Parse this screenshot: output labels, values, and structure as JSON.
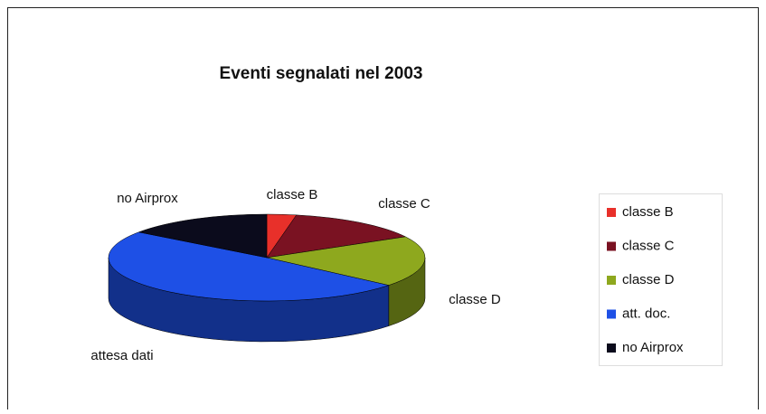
{
  "chart_data": {
    "type": "pie3d",
    "title": "Eventi segnalati nel 2003",
    "categories": [
      "classe B",
      "classe C",
      "classe D",
      "att. doc.",
      "no Airprox"
    ],
    "labels": [
      "classe B",
      "classe C",
      "classe D",
      "attesa dati",
      "no Airprox"
    ],
    "values": [
      3,
      14,
      19,
      49,
      15
    ],
    "colors": [
      "#e8302a",
      "#7a1222",
      "#8ea81e",
      "#1e50e6",
      "#0b0b1c"
    ],
    "legend": "right"
  }
}
